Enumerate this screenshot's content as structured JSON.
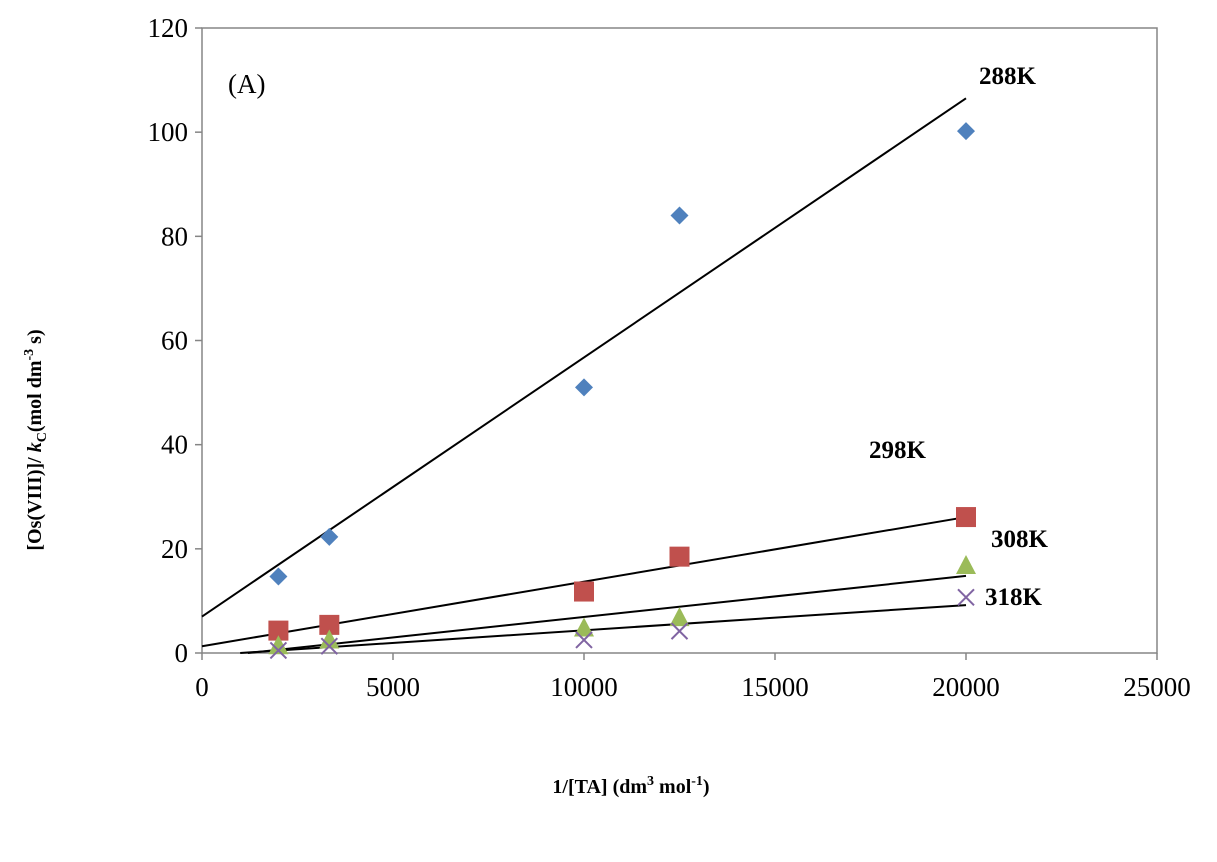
{
  "chart_data": {
    "type": "scatter",
    "panel_label": "(A)",
    "xlabel_parts": [
      "1/[TA] (dm",
      "3",
      " mol",
      "-1",
      ")"
    ],
    "ylabel_parts": [
      "[Os(VIII)]/ ",
      "k",
      "C",
      "(mol dm",
      "-3",
      " s)"
    ],
    "xlim": [
      0,
      25000
    ],
    "ylim": [
      0,
      120
    ],
    "x_ticks": [
      0,
      5000,
      10000,
      15000,
      20000,
      25000
    ],
    "y_ticks": [
      0,
      20,
      40,
      60,
      80,
      100,
      120
    ],
    "x_tick_labels": [
      "0",
      "5000",
      "10000",
      "15000",
      "20000",
      "25000"
    ],
    "y_tick_labels": [
      "0",
      "20",
      "40",
      "60",
      "80",
      "100",
      "120"
    ],
    "grid": false,
    "series": [
      {
        "name": "288K",
        "marker": "diamond",
        "color": "#4F81BD",
        "points": [
          [
            2000,
            14.7
          ],
          [
            3333,
            22.3
          ],
          [
            10000,
            51
          ],
          [
            12500,
            84
          ],
          [
            20000,
            100.2
          ]
        ],
        "trendline": [
          [
            0,
            7
          ],
          [
            20000,
            106.5
          ]
        ]
      },
      {
        "name": "298K",
        "marker": "square",
        "color": "#C0504D",
        "points": [
          [
            2000,
            4.3
          ],
          [
            3333,
            5.4
          ],
          [
            10000,
            11.8
          ],
          [
            12500,
            18.5
          ],
          [
            20000,
            26.1
          ]
        ],
        "trendline": [
          [
            0,
            1.3
          ],
          [
            20000,
            26.1
          ]
        ]
      },
      {
        "name": "308K",
        "marker": "triangle",
        "color": "#9BBB59",
        "points": [
          [
            2000,
            1.5
          ],
          [
            3333,
            2.6
          ],
          [
            10000,
            4.9
          ],
          [
            12500,
            6.9
          ],
          [
            20000,
            16.9
          ]
        ],
        "trendline": [
          [
            1200,
            0
          ],
          [
            20000,
            14.8
          ]
        ]
      },
      {
        "name": "318K",
        "marker": "x",
        "color": "#8064A2",
        "points": [
          [
            2000,
            0.5
          ],
          [
            3333,
            1.3
          ],
          [
            10000,
            2.5
          ],
          [
            12500,
            4.2
          ],
          [
            20000,
            10.7
          ]
        ],
        "trendline": [
          [
            1000,
            0
          ],
          [
            20000,
            9.2
          ]
        ]
      }
    ]
  }
}
